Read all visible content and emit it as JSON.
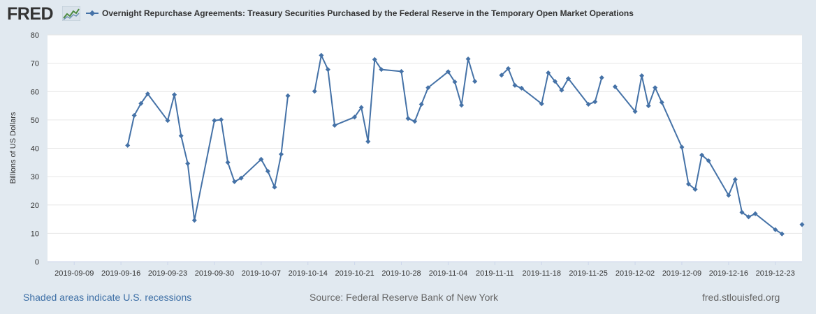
{
  "header": {
    "logo_text": "FRED",
    "title": "Overnight Repurchase Agreements: Treasury Securities Purchased by the Federal Reserve in the Temporary Open Market Operations"
  },
  "footer": {
    "recessions": "Shaded areas indicate U.S. recessions",
    "source": "Source: Federal Reserve Bank of New York",
    "site": "fred.stlouisfed.org"
  },
  "colors": {
    "series": "#4572a7",
    "background": "#e1e9f0",
    "plot": "#ffffff",
    "grid": "#e6e6e6"
  },
  "chart_data": {
    "type": "line",
    "title": "Overnight Repurchase Agreements: Treasury Securities Purchased by the Federal Reserve in the Temporary Open Market Operations",
    "ylabel": "Billions of US Dollars",
    "xlabel": "",
    "ylim": [
      0,
      80
    ],
    "xlim": [
      "2019-09-05",
      "2019-12-27"
    ],
    "yticks": [
      0,
      10,
      20,
      30,
      40,
      50,
      60,
      70,
      80
    ],
    "xticks": [
      "2019-09-09",
      "2019-09-16",
      "2019-09-23",
      "2019-09-30",
      "2019-10-07",
      "2019-10-14",
      "2019-10-21",
      "2019-10-28",
      "2019-11-04",
      "2019-11-11",
      "2019-11-18",
      "2019-11-25",
      "2019-12-02",
      "2019-12-09",
      "2019-12-16",
      "2019-12-23"
    ],
    "grid": true,
    "series": [
      {
        "name": "Overnight Repurchase Agreements: Treasury Securities Purchased by the Federal Reserve in the Temporary Open Market Operations",
        "points": [
          [
            "2019-09-17",
            41.0
          ],
          [
            "2019-09-18",
            51.6
          ],
          [
            "2019-09-19",
            55.8
          ],
          [
            "2019-09-20",
            59.2
          ],
          [
            "2019-09-23",
            49.8
          ],
          [
            "2019-09-24",
            58.9
          ],
          [
            "2019-09-25",
            44.4
          ],
          [
            "2019-09-26",
            34.6
          ],
          [
            "2019-09-27",
            14.6
          ],
          [
            "2019-09-30",
            49.8
          ],
          [
            "2019-10-01",
            50.1
          ],
          [
            "2019-10-02",
            35.0
          ],
          [
            "2019-10-03",
            28.2
          ],
          [
            "2019-10-04",
            29.5
          ],
          [
            "2019-10-07",
            36.1
          ],
          [
            "2019-10-08",
            31.9
          ],
          [
            "2019-10-09",
            26.3
          ],
          [
            "2019-10-10",
            37.9
          ],
          [
            "2019-10-11",
            58.5
          ],
          null,
          [
            "2019-10-15",
            60.1
          ],
          [
            "2019-10-16",
            72.8
          ],
          [
            "2019-10-17",
            67.8
          ],
          [
            "2019-10-18",
            48.1
          ],
          [
            "2019-10-21",
            51.0
          ],
          [
            "2019-10-22",
            54.4
          ],
          [
            "2019-10-23",
            42.4
          ],
          [
            "2019-10-24",
            71.3
          ],
          [
            "2019-10-25",
            67.8
          ],
          [
            "2019-10-28",
            67.1
          ],
          [
            "2019-10-29",
            50.5
          ],
          [
            "2019-10-30",
            49.5
          ],
          [
            "2019-10-31",
            55.5
          ],
          [
            "2019-11-01",
            61.4
          ],
          [
            "2019-11-04",
            67.0
          ],
          [
            "2019-11-05",
            63.4
          ],
          [
            "2019-11-06",
            55.2
          ],
          [
            "2019-11-07",
            71.5
          ],
          [
            "2019-11-08",
            63.6
          ],
          null,
          [
            "2019-11-12",
            65.8
          ],
          [
            "2019-11-13",
            68.1
          ],
          [
            "2019-11-14",
            62.2
          ],
          [
            "2019-11-15",
            61.2
          ],
          [
            "2019-11-18",
            55.7
          ],
          [
            "2019-11-19",
            66.6
          ],
          [
            "2019-11-20",
            63.6
          ],
          [
            "2019-11-21",
            60.5
          ],
          [
            "2019-11-22",
            64.6
          ],
          [
            "2019-11-25",
            55.5
          ],
          [
            "2019-11-26",
            56.4
          ],
          [
            "2019-11-27",
            64.9
          ],
          null,
          [
            "2019-11-29",
            61.7
          ],
          [
            "2019-12-02",
            53.0
          ],
          [
            "2019-12-03",
            65.6
          ],
          [
            "2019-12-04",
            55.0
          ],
          [
            "2019-12-05",
            61.4
          ],
          [
            "2019-12-06",
            56.2
          ],
          [
            "2019-12-09",
            40.4
          ],
          [
            "2019-12-10",
            27.4
          ],
          [
            "2019-12-11",
            25.5
          ],
          [
            "2019-12-12",
            37.6
          ],
          [
            "2019-12-13",
            35.6
          ],
          [
            "2019-12-16",
            23.4
          ],
          [
            "2019-12-17",
            29.0
          ],
          [
            "2019-12-18",
            17.4
          ],
          [
            "2019-12-19",
            15.8
          ],
          [
            "2019-12-20",
            16.9
          ],
          [
            "2019-12-23",
            11.3
          ],
          [
            "2019-12-24",
            9.8
          ],
          null,
          [
            "2019-12-27",
            13.1
          ]
        ]
      }
    ]
  }
}
